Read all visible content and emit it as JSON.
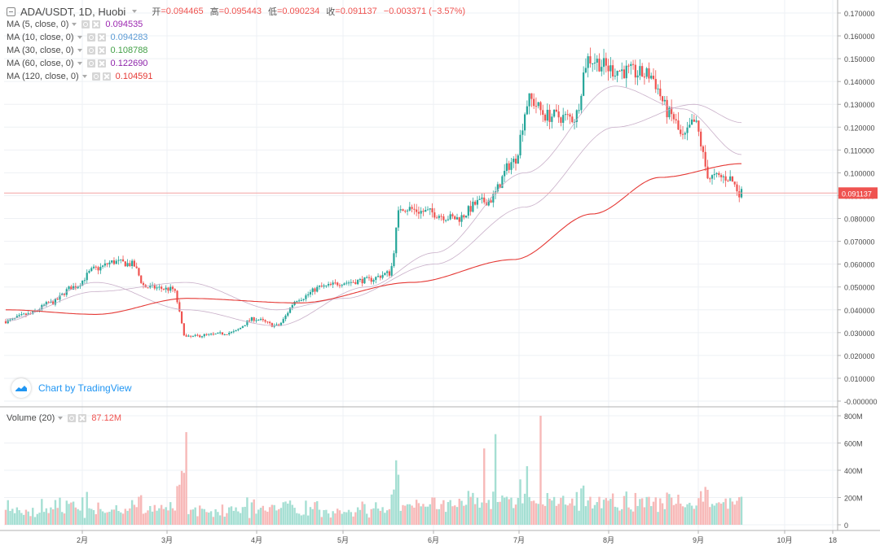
{
  "header": {
    "symbol": "ADA/USDT, 1D, Huobi",
    "open_label": "开",
    "open_value": "=0.094465",
    "high_label": "高",
    "high_value": "=0.095443",
    "low_label": "低",
    "low_value": "=0.090234",
    "close_label": "收",
    "close_value": "=0.091137",
    "change": "−0.003371 (−3.57%)"
  },
  "indicators": [
    {
      "label": "MA (5, close, 0)",
      "value": "0.094535",
      "color": "#9c27b0"
    },
    {
      "label": "MA (10, close, 0)",
      "value": "0.094283",
      "color": "#5b9bd5"
    },
    {
      "label": "MA (30, close, 0)",
      "value": "0.108788",
      "color": "#43a047"
    },
    {
      "label": "MA (60, close, 0)",
      "value": "0.122690",
      "color": "#8e24aa"
    },
    {
      "label": "MA (120, close, 0)",
      "value": "0.104591",
      "color": "#e53935"
    }
  ],
  "volume": {
    "label": "Volume (20)",
    "value": "87.12M",
    "color": "#ef5350"
  },
  "branding": {
    "text": "Chart by TradingView"
  },
  "colors": {
    "up": "#26a69a",
    "down": "#ef5350",
    "up_volume": "#a5dfd3",
    "down_volume": "#f7b9b8",
    "ma120": "#e53935",
    "ma_thin": "#c9b0c9",
    "grid": "#eef0f4"
  },
  "chart_data": [
    {
      "type": "candlestick",
      "title": "ADA/USDT, 1D, Huobi",
      "x_ticks": [
        "2月",
        "3月",
        "4月",
        "5月",
        "6月",
        "7月",
        "8月",
        "9月",
        "10月",
        "18"
      ],
      "y_ticks": [
        "0.170000",
        "0.160000",
        "0.150000",
        "0.140000",
        "0.130000",
        "0.120000",
        "0.110000",
        "0.100000",
        "0.090000",
        "0.080000",
        "0.070000",
        "0.060000",
        "0.050000",
        "0.040000",
        "0.030000",
        "0.020000",
        "0.010000",
        "-0.000000"
      ],
      "ylim": [
        0,
        0.17
      ],
      "last_price": "0.091137",
      "price_anchors": [
        [
          0,
          0.035
        ],
        [
          10,
          0.038
        ],
        [
          20,
          0.043
        ],
        [
          30,
          0.05
        ],
        [
          40,
          0.058
        ],
        [
          48,
          0.061
        ],
        [
          56,
          0.06
        ],
        [
          62,
          0.05
        ],
        [
          74,
          0.049
        ],
        [
          80,
          0.028
        ],
        [
          90,
          0.029
        ],
        [
          100,
          0.03
        ],
        [
          110,
          0.036
        ],
        [
          120,
          0.033
        ],
        [
          130,
          0.045
        ],
        [
          140,
          0.05
        ],
        [
          150,
          0.052
        ],
        [
          160,
          0.053
        ],
        [
          170,
          0.056
        ],
        [
          175,
          0.085
        ],
        [
          185,
          0.083
        ],
        [
          200,
          0.08
        ],
        [
          210,
          0.087
        ],
        [
          214,
          0.088
        ],
        [
          225,
          0.105
        ],
        [
          232,
          0.132
        ],
        [
          240,
          0.125
        ],
        [
          252,
          0.124
        ],
        [
          258,
          0.15
        ],
        [
          270,
          0.145
        ],
        [
          285,
          0.143
        ],
        [
          295,
          0.125
        ],
        [
          300,
          0.115
        ],
        [
          305,
          0.122
        ],
        [
          312,
          0.098
        ],
        [
          320,
          0.098
        ],
        [
          326,
          0.091
        ]
      ],
      "ma120_anchors": [
        [
          0,
          0.04
        ],
        [
          40,
          0.038
        ],
        [
          80,
          0.045
        ],
        [
          130,
          0.043
        ],
        [
          180,
          0.052
        ],
        [
          225,
          0.062
        ],
        [
          260,
          0.082
        ],
        [
          290,
          0.098
        ],
        [
          326,
          0.104
        ]
      ],
      "ma60_anchors": [
        [
          0,
          0.036
        ],
        [
          40,
          0.048
        ],
        [
          80,
          0.052
        ],
        [
          120,
          0.04
        ],
        [
          150,
          0.045
        ],
        [
          190,
          0.06
        ],
        [
          230,
          0.085
        ],
        [
          270,
          0.12
        ],
        [
          305,
          0.13
        ],
        [
          326,
          0.122
        ]
      ],
      "ma30_anchors": [
        [
          0,
          0.035
        ],
        [
          40,
          0.052
        ],
        [
          80,
          0.04
        ],
        [
          120,
          0.033
        ],
        [
          160,
          0.05
        ],
        [
          190,
          0.065
        ],
        [
          230,
          0.1
        ],
        [
          270,
          0.138
        ],
        [
          300,
          0.128
        ],
        [
          326,
          0.108
        ]
      ]
    },
    {
      "type": "bar",
      "title": "Volume (20)",
      "y_ticks": [
        "800M",
        "600M",
        "400M",
        "200M",
        "0"
      ],
      "ylim": [
        0,
        820
      ],
      "last_value": "87.12M"
    }
  ]
}
